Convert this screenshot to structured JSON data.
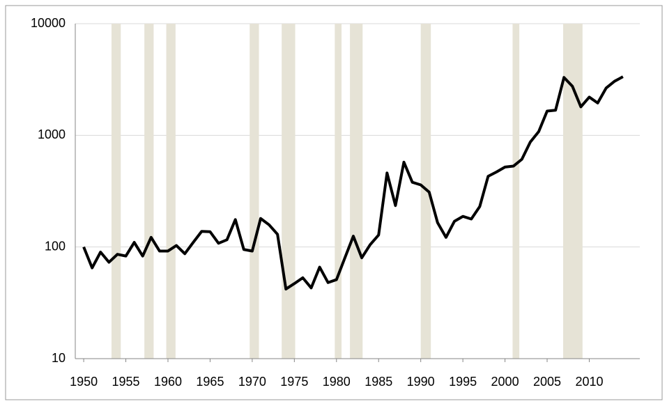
{
  "chart_data": {
    "type": "line",
    "x": [
      1950,
      1951,
      1952,
      1953,
      1954,
      1955,
      1956,
      1957,
      1958,
      1959,
      1960,
      1961,
      1962,
      1963,
      1964,
      1965,
      1966,
      1967,
      1968,
      1969,
      1970,
      1971,
      1972,
      1973,
      1974,
      1975,
      1976,
      1977,
      1978,
      1979,
      1980,
      1981,
      1982,
      1983,
      1984,
      1985,
      1986,
      1987,
      1988,
      1989,
      1990,
      1991,
      1992,
      1993,
      1994,
      1995,
      1996,
      1997,
      1998,
      1999,
      2000,
      2001,
      2002,
      2003,
      2004,
      2005,
      2006,
      2007,
      2008,
      2009,
      2010,
      2011,
      2012,
      2013,
      2014
    ],
    "series": [
      {
        "color": "#000000",
        "values": [
          100,
          65,
          90,
          73,
          86,
          83,
          110,
          83,
          122,
          92,
          92,
          103,
          87,
          110,
          138,
          137,
          108,
          116,
          176,
          95,
          92,
          180,
          158,
          130,
          42,
          47,
          53,
          43,
          66,
          48,
          51,
          80,
          125,
          80,
          105,
          128,
          460,
          235,
          575,
          380,
          360,
          310,
          165,
          122,
          170,
          188,
          178,
          230,
          430,
          470,
          520,
          530,
          610,
          870,
          1080,
          1650,
          1680,
          3300,
          2750,
          1800,
          2200,
          1950,
          2650,
          3050,
          3350
        ]
      }
    ],
    "shaded_periods": [
      [
        1953.3,
        1954.4
      ],
      [
        1957.2,
        1958.3
      ],
      [
        1959.8,
        1960.9
      ],
      [
        1969.7,
        1970.8
      ],
      [
        1973.5,
        1975.1
      ],
      [
        1979.8,
        1980.6
      ],
      [
        1981.6,
        1983.1
      ],
      [
        1990.0,
        1991.2
      ],
      [
        2000.9,
        2001.7
      ],
      [
        2006.9,
        2009.2
      ]
    ],
    "shade_color": "#e6e3d6",
    "xlim": [
      1949,
      2016
    ],
    "xticks": [
      1950,
      1955,
      1960,
      1965,
      1970,
      1975,
      1980,
      1985,
      1990,
      1995,
      2000,
      2005,
      2010
    ],
    "ylim": [
      10,
      10000
    ],
    "yticks": [
      10,
      100,
      1000,
      10000
    ],
    "y_log": true,
    "grid": true
  }
}
